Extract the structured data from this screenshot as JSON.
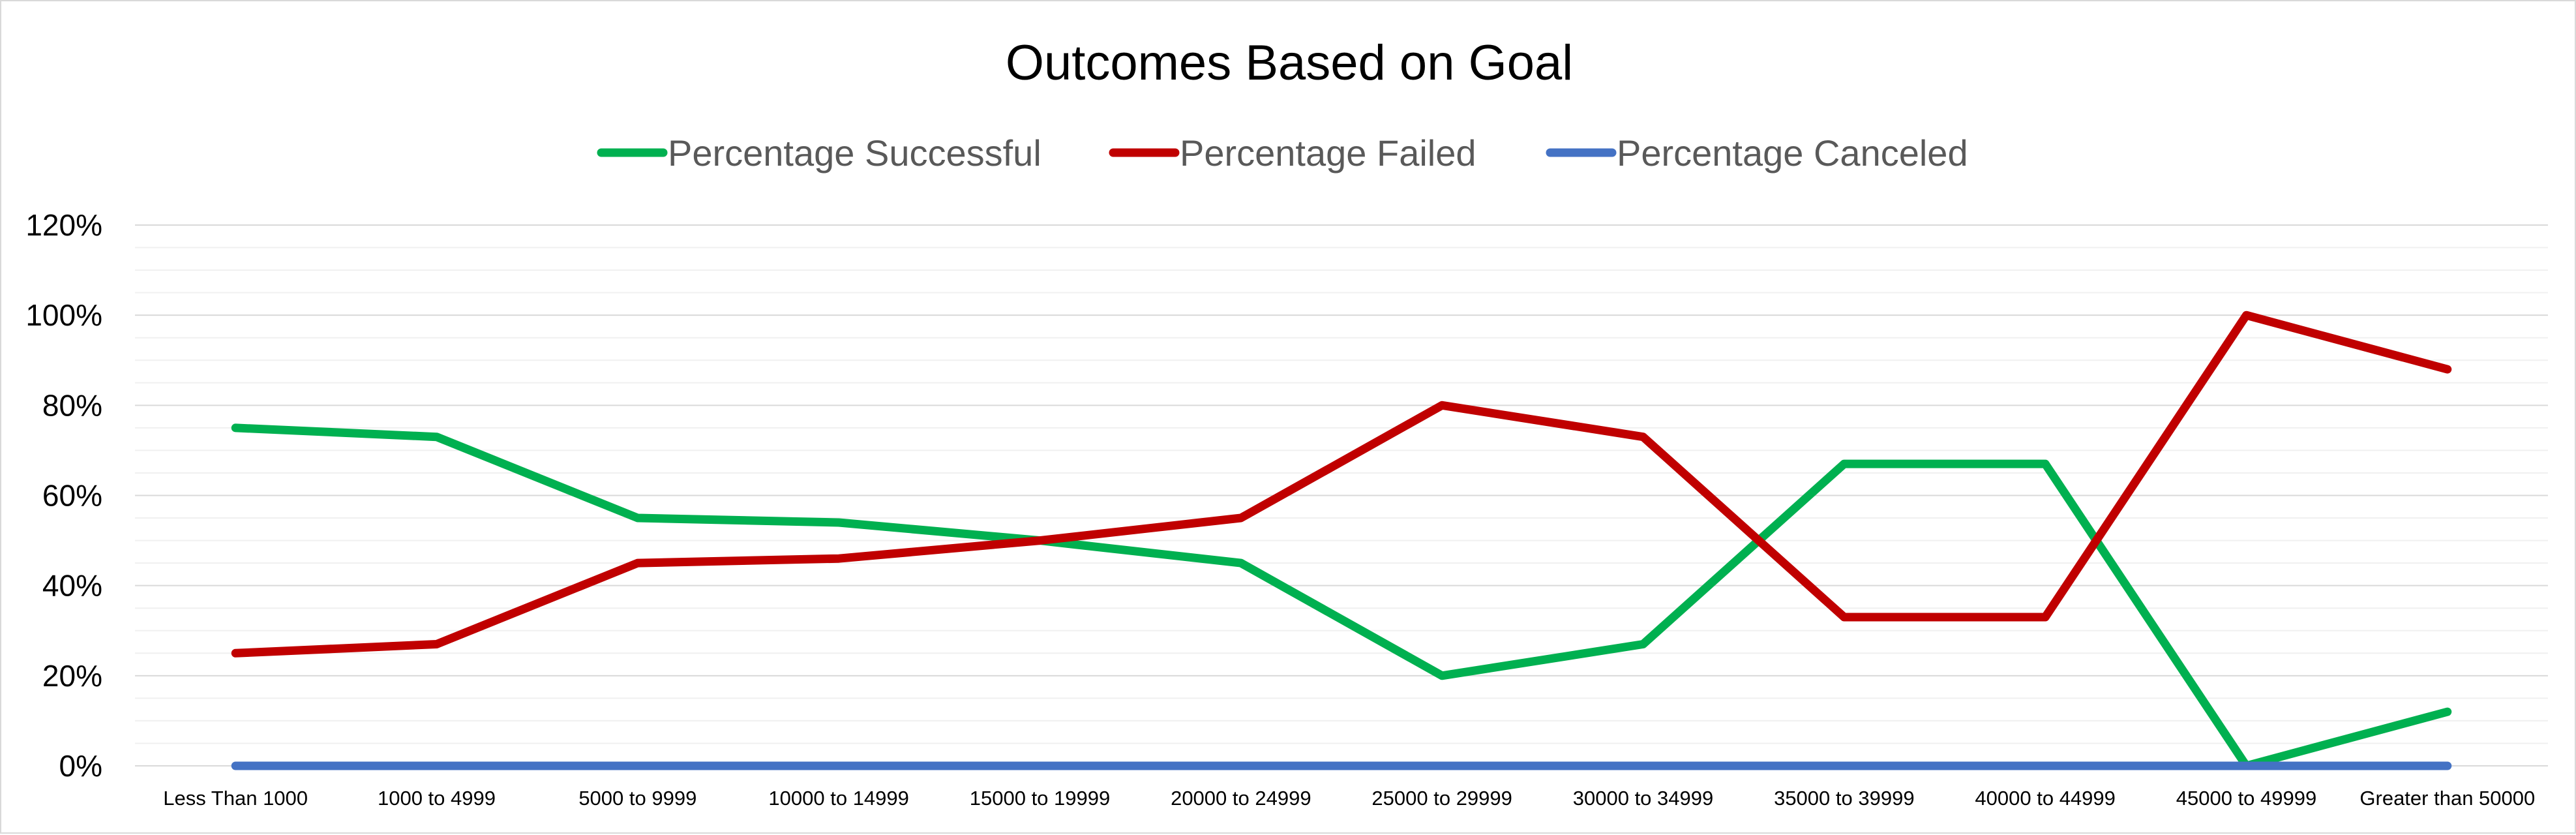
{
  "chart_data": {
    "type": "line",
    "title": "Outcomes Based on Goal",
    "xlabel": "",
    "ylabel": "",
    "categories": [
      "Less Than 1000",
      "1000 to 4999",
      "5000 to 9999",
      "10000 to 14999",
      "15000 to 19999",
      "20000 to 24999",
      "25000 to 29999",
      "30000 to 34999",
      "35000 to 39999",
      "40000 to 44999",
      "45000 to 49999",
      "Greater than 50000"
    ],
    "series": [
      {
        "name": "Percentage Successful",
        "color": "#00b050",
        "values": [
          75,
          73,
          55,
          54,
          50,
          45,
          20,
          27,
          67,
          67,
          0,
          12
        ]
      },
      {
        "name": "Percentage Failed",
        "color": "#c00000",
        "values": [
          25,
          27,
          45,
          46,
          50,
          55,
          80,
          73,
          33,
          33,
          100,
          88
        ]
      },
      {
        "name": "Percentage Canceled",
        "color": "#4472c4",
        "values": [
          0,
          0,
          0,
          0,
          0,
          0,
          0,
          0,
          0,
          0,
          0,
          0
        ]
      }
    ],
    "ylim": [
      0,
      120
    ],
    "yticks": [
      "0%",
      "20%",
      "40%",
      "60%",
      "80%",
      "100%",
      "120%"
    ],
    "grid": true,
    "legend_position": "top"
  }
}
